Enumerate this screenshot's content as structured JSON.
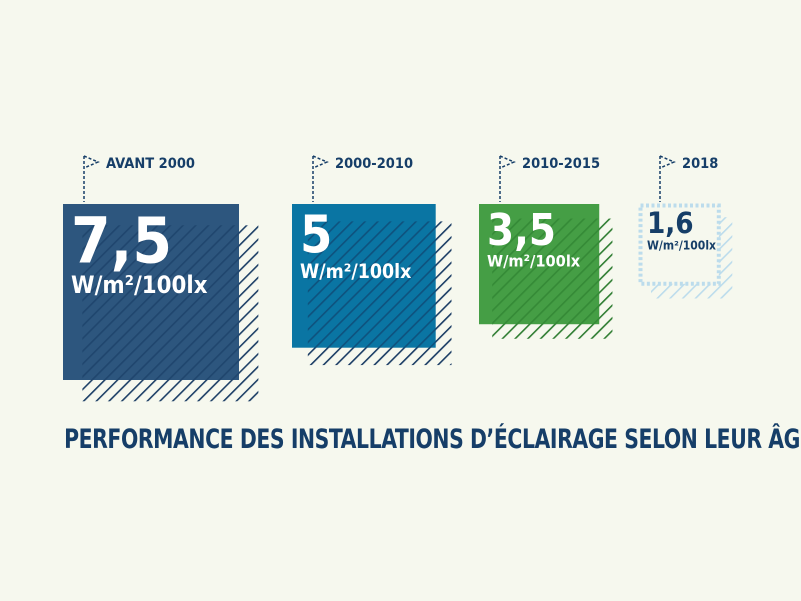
{
  "chart_data": {
    "type": "bar",
    "title": "PERFORMANCE DES INSTALLATIONS D’ÉCLAIRAGE SELON LEUR ÂGE",
    "unit": "W/m²/100lx",
    "categories": [
      "AVANT 2000",
      "2000-2010",
      "2010-2015",
      "2018"
    ],
    "values": [
      7.5,
      5,
      3.5,
      1.6
    ],
    "value_labels": [
      "7,5",
      "5",
      "3,5",
      "1,6"
    ],
    "colors": [
      "#244f79",
      "#006f9f",
      "#3d9a3d",
      "#bcdcec"
    ],
    "styles": [
      "solid",
      "solid",
      "solid",
      "dotted-outline"
    ],
    "title_color": "#163e68",
    "label_color": "#163e68"
  }
}
